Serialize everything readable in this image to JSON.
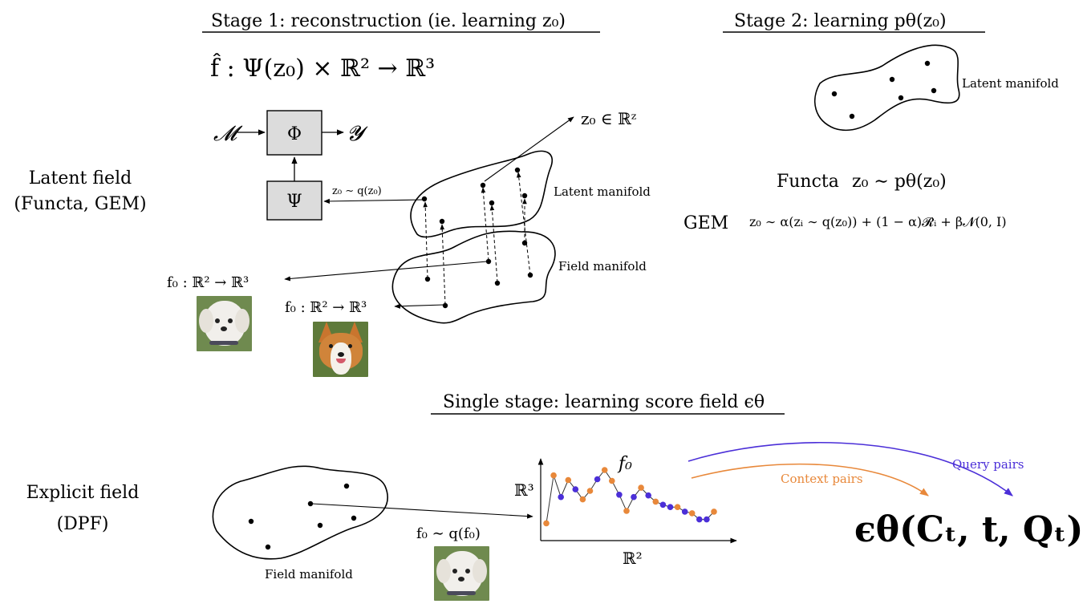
{
  "colors": {
    "context": "#E8883A",
    "query": "#4B2FD8",
    "box_fill": "#DCDCDC",
    "line": "#000000"
  },
  "stage1": {
    "title": "Stage 1:  reconstruction (ie.  learning z₀)",
    "equation": "f̂ : Ψ(z₀) × ℝ² → ℝ³",
    "input_symbol": "𝓜",
    "phi_label": "Φ",
    "output_symbol": "𝓨",
    "psi_label": "Ψ",
    "sample_label": "z₀ ∼ q(z₀)",
    "latent_space_label": "z₀ ∈ ℝᶻ",
    "latent_manifold_label": "Latent manifold",
    "field_manifold_label": "Field manifold",
    "field_fn_label_1": "f₀ : ℝ² → ℝ³",
    "field_fn_label_2": "f₀ : ℝ² → ℝ³"
  },
  "stage2": {
    "title": "Stage 2:  learning  pθ(z₀)",
    "manifold_label": "Latent manifold",
    "functa_prefix": "Functa",
    "functa_formula": "z₀ ∼ pθ(z₀)",
    "gem_prefix": "GEM",
    "gem_formula": "z₀ ∼ α(zᵢ ∼ q(z₀)) + (1 − α)𝓡ᵢ + β𝓝(0, I)"
  },
  "row_labels": {
    "latent_line1": "Latent field",
    "latent_line2": "(Functa, GEM)",
    "explicit_line1": "Explicit field",
    "explicit_line2": "(DPF)"
  },
  "single_stage": {
    "title": "Single stage:  learning score field ϵθ",
    "manifold_label": "Field manifold",
    "sample_label": "f₀ ∼ q(f₀)",
    "plot_fn_label": "f₀",
    "plot_y_label": "ℝ³",
    "plot_x_label": "ℝ²",
    "context_label": "Context pairs",
    "query_label": "Query pairs",
    "score_formula": "ϵθ(Cₜ, t, Qₜ)"
  },
  "signal_points": [
    {
      "value": 0.1,
      "role": "context"
    },
    {
      "value": 0.72,
      "role": "context"
    },
    {
      "value": 0.44,
      "role": "query"
    },
    {
      "value": 0.66,
      "role": "context"
    },
    {
      "value": 0.54,
      "role": "query"
    },
    {
      "value": 0.41,
      "role": "context"
    },
    {
      "value": 0.52,
      "role": "context"
    },
    {
      "value": 0.67,
      "role": "query"
    },
    {
      "value": 0.79,
      "role": "context"
    },
    {
      "value": 0.65,
      "role": "context"
    },
    {
      "value": 0.47,
      "role": "query"
    },
    {
      "value": 0.26,
      "role": "context"
    },
    {
      "value": 0.44,
      "role": "query"
    },
    {
      "value": 0.56,
      "role": "context"
    },
    {
      "value": 0.46,
      "role": "query"
    },
    {
      "value": 0.38,
      "role": "context"
    },
    {
      "value": 0.34,
      "role": "query"
    },
    {
      "value": 0.31,
      "role": "query"
    },
    {
      "value": 0.31,
      "role": "context"
    },
    {
      "value": 0.25,
      "role": "query"
    },
    {
      "value": 0.23,
      "role": "context"
    },
    {
      "value": 0.15,
      "role": "query"
    },
    {
      "value": 0.15,
      "role": "query"
    },
    {
      "value": 0.25,
      "role": "context"
    }
  ]
}
